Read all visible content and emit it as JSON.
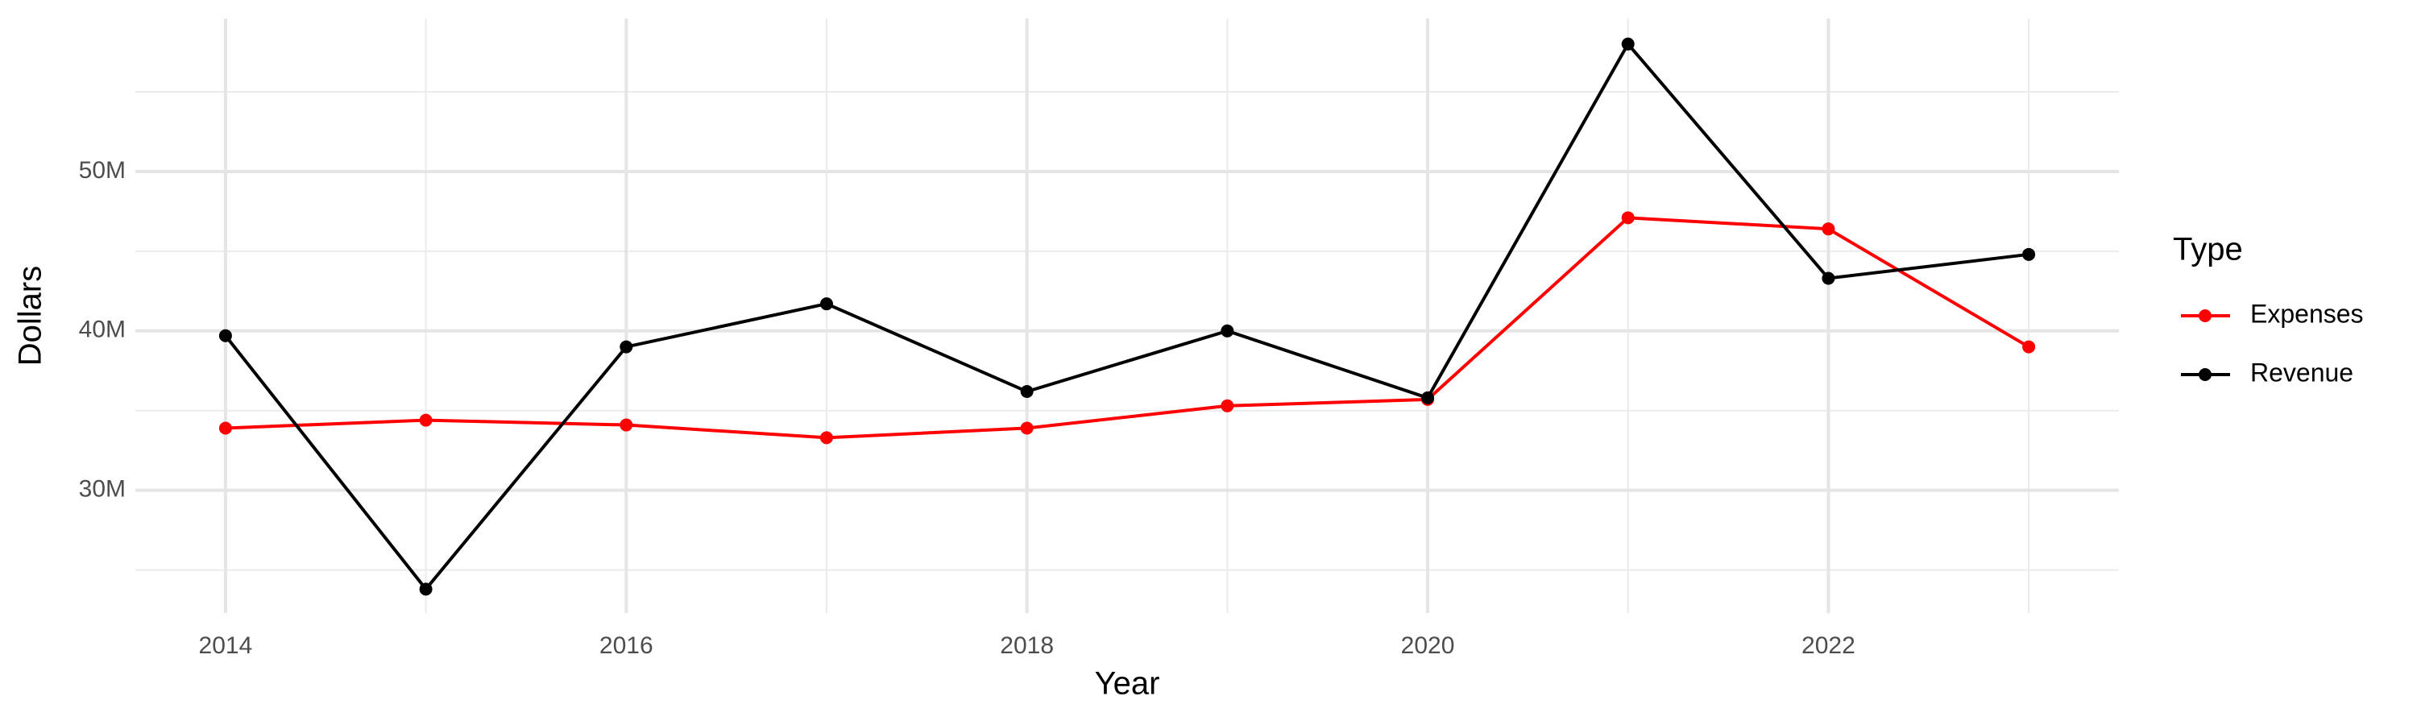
{
  "chart_data": {
    "type": "line",
    "x_label": "Year",
    "y_label": "Dollars",
    "x": [
      2014,
      2015,
      2016,
      2017,
      2018,
      2019,
      2020,
      2021,
      2022,
      2023
    ],
    "series": [
      {
        "name": "Expenses",
        "color": "#ff0000",
        "values": [
          33900000,
          34400000,
          34100000,
          33300000,
          33900000,
          35300000,
          35700000,
          47100000,
          46400000,
          39000000
        ]
      },
      {
        "name": "Revenue",
        "color": "#000000",
        "values": [
          39700000,
          23800000,
          39000000,
          41700000,
          36200000,
          40000000,
          35800000,
          58000000,
          43300000,
          44800000
        ]
      }
    ],
    "xlim": [
      2013.55,
      2023.45
    ],
    "xticks": [
      2014,
      2016,
      2018,
      2020,
      2022
    ],
    "ylim": [
      22300000,
      59600000
    ],
    "yticks": [
      {
        "value": 30000000,
        "label": "30M"
      },
      {
        "value": 40000000,
        "label": "40M"
      },
      {
        "value": 50000000,
        "label": "50M"
      }
    ],
    "grid": true,
    "legend_title": "Type",
    "legend_position": "right"
  }
}
